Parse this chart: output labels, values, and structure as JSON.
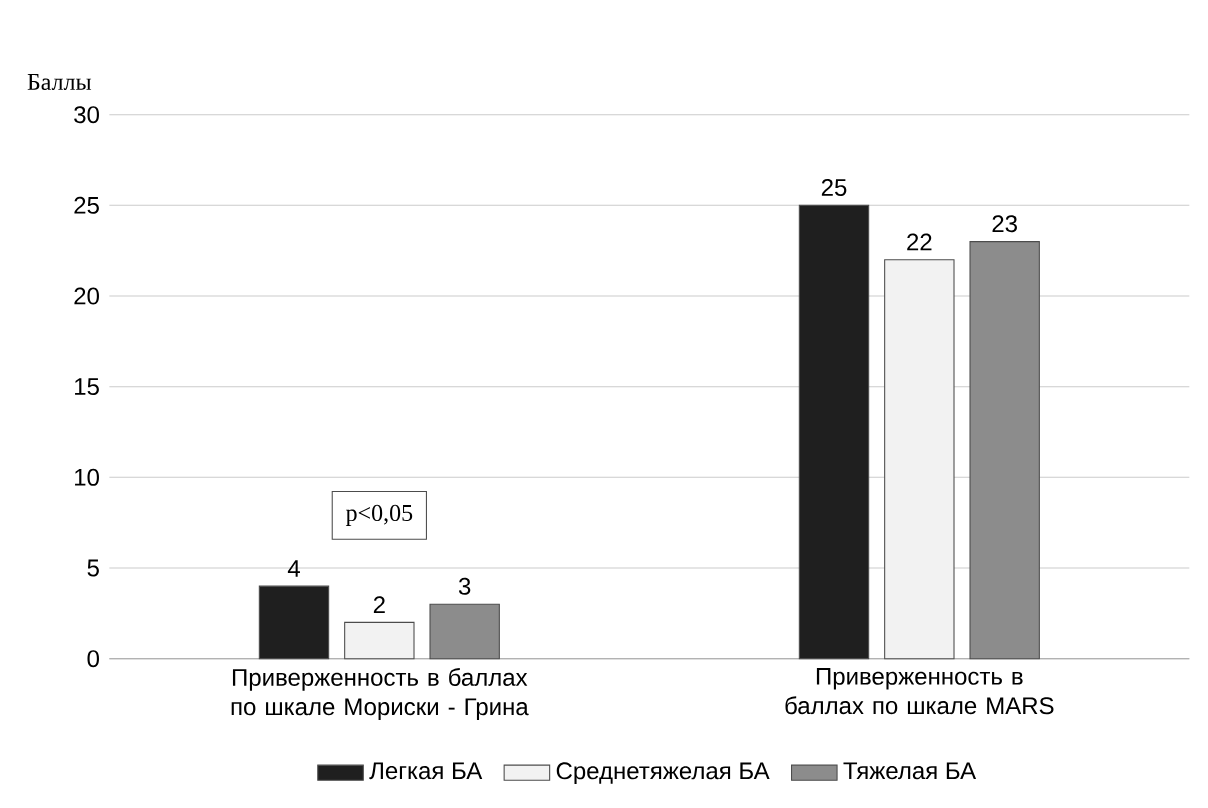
{
  "chart_data": {
    "type": "bar",
    "ylabel": "Баллы",
    "categories": [
      "Приверженность в баллах по шкале Мориски - Грина",
      "Приверженность в баллах по шкале  MARS"
    ],
    "series": [
      {
        "name": "Легкая БА",
        "color": "#1f1f1f",
        "values": [
          4,
          25
        ]
      },
      {
        "name": "Среднетяжелая БА",
        "color": "#f2f2f2",
        "values": [
          2,
          22
        ]
      },
      {
        "name": "Тяжелая БА",
        "color": "#8c8c8c",
        "values": [
          3,
          23
        ]
      }
    ],
    "ylim": [
      0,
      30
    ],
    "yticks": [
      0,
      5,
      10,
      15,
      20,
      25,
      30
    ],
    "grid": "y",
    "legend": "bottom",
    "data_labels": true,
    "annotations": [
      "p<0,05"
    ]
  }
}
